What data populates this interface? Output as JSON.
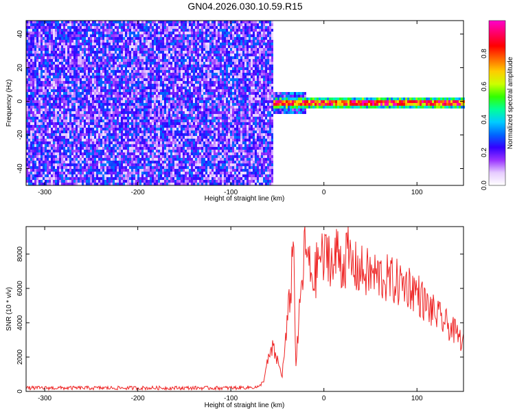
{
  "title": "GN04.2026.030.10.59.R15",
  "chart_data": [
    {
      "type": "heatmap",
      "xlabel": "Height of straight line (km)",
      "ylabel": "Frequency (Hz)",
      "xlim": [
        -320,
        150
      ],
      "ylim": [
        -50,
        48
      ],
      "x_ticks": [
        -300,
        -200,
        -100,
        0,
        100
      ],
      "x_tick_labels": [
        "-300",
        "-200",
        "-100",
        "0",
        "100"
      ],
      "y_ticks": [
        -40,
        -20,
        0,
        20,
        40
      ],
      "y_tick_labels": [
        "-40",
        "-20",
        "0",
        "20",
        "40"
      ],
      "noise_region_x": [
        -320,
        -55
      ],
      "signal_line": {
        "frequency": 0,
        "x_start": -60,
        "x_end": 150
      },
      "colorbar": {
        "label": "Normalized spectral amplitude",
        "range": [
          0,
          1
        ],
        "ticks": [
          0.0,
          0.2,
          0.4,
          0.6,
          0.8
        ],
        "tick_labels": [
          "0.0",
          "0.2",
          "0.4",
          "0.6",
          "0.8"
        ],
        "colors": [
          "#ffffff",
          "#e6ccff",
          "#9933ff",
          "#3300ff",
          "#0066ff",
          "#00ccff",
          "#00ff99",
          "#33ff00",
          "#ccff00",
          "#ffcc00",
          "#ff6600",
          "#ff0000",
          "#ff0066",
          "#ff00cc"
        ]
      },
      "grid": false
    },
    {
      "type": "line",
      "xlabel": "Height of straight line (km)",
      "ylabel": "SNR (10 * v/v)",
      "xlim": [
        -320,
        150
      ],
      "ylim": [
        0,
        9600
      ],
      "x_ticks": [
        -300,
        -200,
        -100,
        0,
        100
      ],
      "x_tick_labels": [
        "-300",
        "-200",
        "-100",
        "0",
        "100"
      ],
      "y_ticks": [
        0,
        2000,
        4000,
        6000,
        8000
      ],
      "y_tick_labels": [
        "0",
        "2000",
        "4000",
        "6000",
        "8000"
      ],
      "color": "#ee2222",
      "x": [
        -320,
        -300,
        -250,
        -200,
        -150,
        -100,
        -70,
        -65,
        -60,
        -55,
        -50,
        -45,
        -40,
        -35,
        -33,
        -30,
        -25,
        -20,
        -15,
        -10,
        -5,
        0,
        5,
        10,
        15,
        20,
        25,
        30,
        40,
        50,
        60,
        70,
        80,
        90,
        100,
        110,
        120,
        130,
        140,
        150
      ],
      "y": [
        200,
        200,
        200,
        200,
        200,
        200,
        250,
        600,
        1800,
        2500,
        1800,
        900,
        3500,
        6500,
        9500,
        1500,
        5500,
        8500,
        7000,
        6500,
        8000,
        7500,
        8300,
        7000,
        8400,
        7200,
        8000,
        7300,
        7000,
        6800,
        6700,
        6500,
        6300,
        6200,
        5800,
        5000,
        4500,
        4000,
        3500,
        2800
      ],
      "grid": false
    }
  ]
}
